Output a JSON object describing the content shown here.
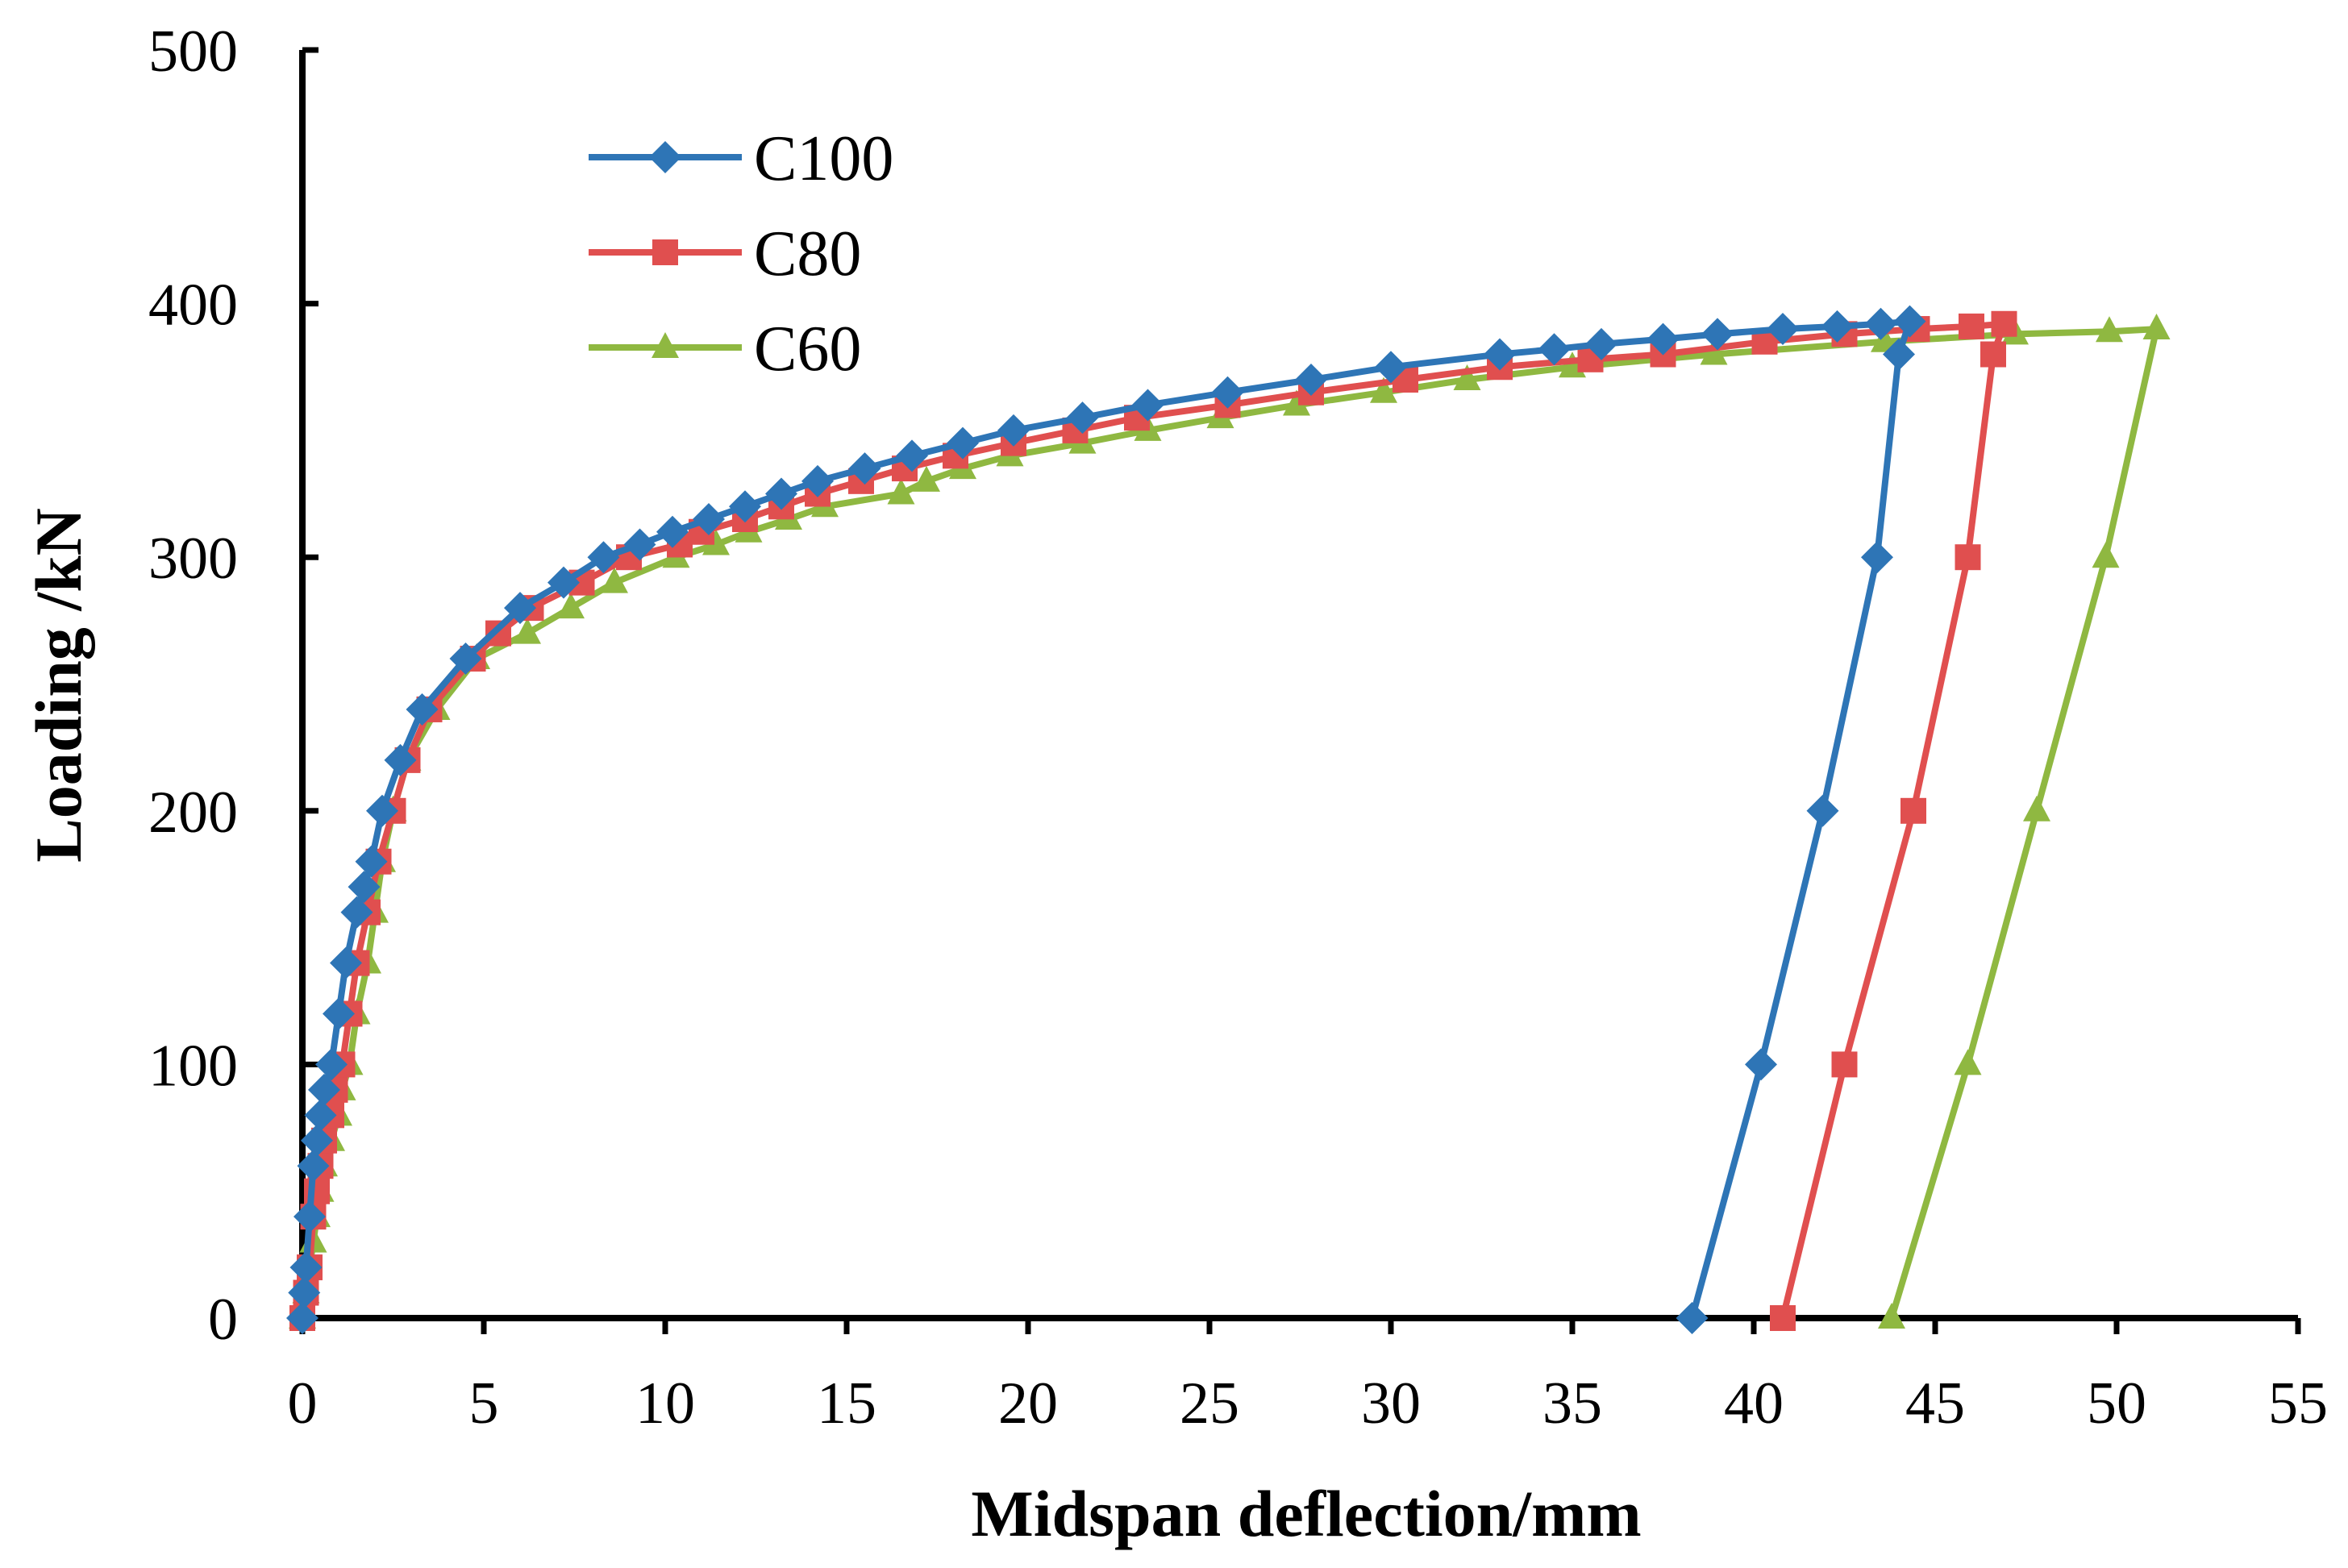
{
  "chart_data": {
    "type": "line",
    "title": "",
    "xlabel": "Midspan deflection/mm",
    "ylabel": "Loading /kN",
    "xlim": [
      0,
      55
    ],
    "ylim": [
      0,
      500
    ],
    "xticks": [
      0,
      5,
      10,
      15,
      20,
      25,
      30,
      35,
      40,
      45,
      50,
      55
    ],
    "yticks": [
      0,
      100,
      200,
      300,
      400,
      500
    ],
    "xtick_labels": [
      "0",
      "5",
      "10",
      "15",
      "20",
      "25",
      "30",
      "35",
      "40",
      "45",
      "50",
      "55"
    ],
    "ytick_labels": [
      "0",
      "100",
      "200",
      "300",
      "400",
      "500"
    ],
    "grid": false,
    "legend_position": "top-left",
    "series": [
      {
        "name": "C100",
        "color": "#2e75b6",
        "marker": "diamond",
        "points": [
          [
            0,
            0
          ],
          [
            0.05,
            10
          ],
          [
            0.1,
            20
          ],
          [
            0.2,
            40
          ],
          [
            0.3,
            60
          ],
          [
            0.4,
            70
          ],
          [
            0.5,
            80
          ],
          [
            0.6,
            90
          ],
          [
            0.8,
            100
          ],
          [
            1.0,
            120
          ],
          [
            1.2,
            140
          ],
          [
            1.5,
            160
          ],
          [
            1.7,
            170
          ],
          [
            1.9,
            180
          ],
          [
            2.2,
            200
          ],
          [
            2.7,
            220
          ],
          [
            3.3,
            240
          ],
          [
            4.5,
            260
          ],
          [
            6.0,
            280
          ],
          [
            7.2,
            290
          ],
          [
            8.3,
            300
          ],
          [
            9.3,
            305
          ],
          [
            10.2,
            310
          ],
          [
            11.2,
            315
          ],
          [
            12.2,
            320
          ],
          [
            13.2,
            325
          ],
          [
            14.2,
            330
          ],
          [
            15.5,
            335
          ],
          [
            16.8,
            340
          ],
          [
            18.2,
            345
          ],
          [
            19.6,
            350
          ],
          [
            21.5,
            355
          ],
          [
            23.3,
            360
          ],
          [
            25.5,
            365
          ],
          [
            27.8,
            370
          ],
          [
            30.0,
            375
          ],
          [
            33.0,
            380
          ],
          [
            34.5,
            382
          ],
          [
            35.8,
            384
          ],
          [
            37.5,
            386
          ],
          [
            39.0,
            388
          ],
          [
            40.8,
            390
          ],
          [
            42.3,
            391
          ],
          [
            43.5,
            392
          ],
          [
            44.3,
            393
          ],
          [
            44.0,
            380
          ],
          [
            43.4,
            300
          ],
          [
            41.9,
            200
          ],
          [
            40.2,
            100
          ],
          [
            38.3,
            0
          ]
        ]
      },
      {
        "name": "C80",
        "color": "#e04f4f",
        "marker": "square",
        "points": [
          [
            0,
            0
          ],
          [
            0.1,
            10
          ],
          [
            0.2,
            20
          ],
          [
            0.3,
            40
          ],
          [
            0.4,
            50
          ],
          [
            0.5,
            60
          ],
          [
            0.6,
            70
          ],
          [
            0.8,
            80
          ],
          [
            0.9,
            90
          ],
          [
            1.1,
            100
          ],
          [
            1.3,
            120
          ],
          [
            1.5,
            140
          ],
          [
            1.8,
            160
          ],
          [
            2.1,
            180
          ],
          [
            2.5,
            200
          ],
          [
            2.9,
            220
          ],
          [
            3.5,
            240
          ],
          [
            4.7,
            260
          ],
          [
            5.4,
            270
          ],
          [
            6.3,
            280
          ],
          [
            7.7,
            290
          ],
          [
            9.0,
            300
          ],
          [
            10.4,
            305
          ],
          [
            11.0,
            310
          ],
          [
            12.2,
            315
          ],
          [
            13.2,
            320
          ],
          [
            14.2,
            325
          ],
          [
            15.4,
            330
          ],
          [
            16.6,
            335
          ],
          [
            18.0,
            340
          ],
          [
            19.6,
            345
          ],
          [
            21.3,
            350
          ],
          [
            23.0,
            355
          ],
          [
            25.5,
            360
          ],
          [
            27.8,
            365
          ],
          [
            30.4,
            370
          ],
          [
            33.0,
            375
          ],
          [
            35.5,
            378
          ],
          [
            37.5,
            380
          ],
          [
            40.3,
            385
          ],
          [
            42.5,
            388
          ],
          [
            44.5,
            390
          ],
          [
            46.0,
            391
          ],
          [
            46.9,
            392
          ],
          [
            46.6,
            380
          ],
          [
            45.9,
            300
          ],
          [
            44.4,
            200
          ],
          [
            42.5,
            100
          ],
          [
            40.8,
            0
          ]
        ]
      },
      {
        "name": "C60",
        "color": "#8fb841",
        "marker": "triangle",
        "points": [
          [
            0,
            0
          ],
          [
            0.1,
            10
          ],
          [
            0.3,
            30
          ],
          [
            0.4,
            40
          ],
          [
            0.5,
            50
          ],
          [
            0.6,
            60
          ],
          [
            0.8,
            70
          ],
          [
            1.0,
            80
          ],
          [
            1.1,
            90
          ],
          [
            1.3,
            100
          ],
          [
            1.5,
            120
          ],
          [
            1.8,
            140
          ],
          [
            2.0,
            160
          ],
          [
            2.2,
            180
          ],
          [
            2.5,
            200
          ],
          [
            2.9,
            220
          ],
          [
            3.7,
            240
          ],
          [
            4.8,
            260
          ],
          [
            6.2,
            270
          ],
          [
            7.4,
            280
          ],
          [
            8.6,
            290
          ],
          [
            10.3,
            300
          ],
          [
            11.4,
            305
          ],
          [
            12.3,
            310
          ],
          [
            13.4,
            315
          ],
          [
            14.4,
            320
          ],
          [
            16.5,
            325
          ],
          [
            17.2,
            330
          ],
          [
            18.2,
            335
          ],
          [
            19.5,
            340
          ],
          [
            21.5,
            345
          ],
          [
            23.3,
            350
          ],
          [
            25.3,
            355
          ],
          [
            27.4,
            360
          ],
          [
            29.8,
            365
          ],
          [
            32.1,
            370
          ],
          [
            35.0,
            375
          ],
          [
            38.9,
            380
          ],
          [
            43.6,
            385
          ],
          [
            47.2,
            388
          ],
          [
            49.8,
            389
          ],
          [
            51.1,
            390
          ],
          [
            49.7,
            300
          ],
          [
            47.8,
            200
          ],
          [
            45.9,
            100
          ],
          [
            43.8,
            0
          ]
        ]
      }
    ]
  }
}
